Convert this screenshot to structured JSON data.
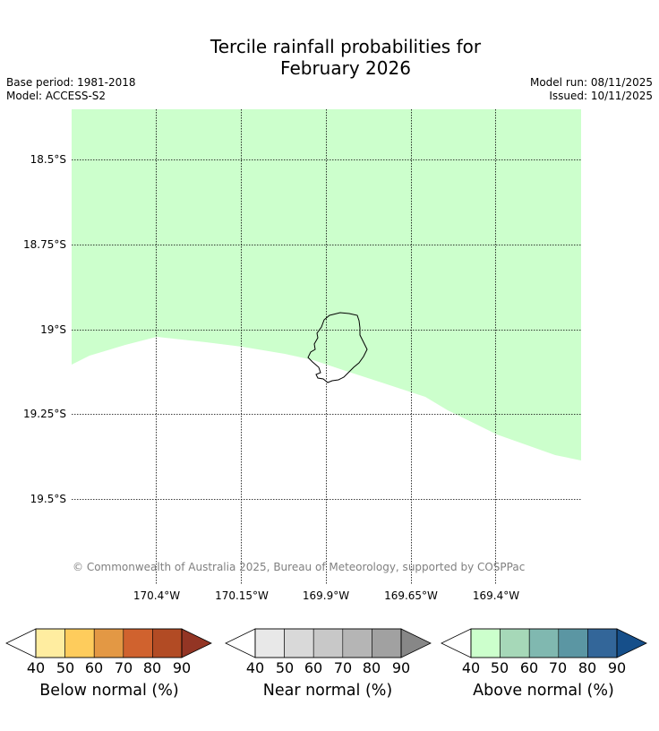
{
  "title": {
    "line1": "Tercile rainfall probabilities for",
    "line2": "February 2026"
  },
  "meta": {
    "base_period": "Base period: 1981-2018",
    "model": "Model: ACCESS-S2",
    "model_run": "Model run: 08/11/2025",
    "issued": "Issued: 10/11/2025"
  },
  "map": {
    "latitude_labels": [
      "18.5°S",
      "18.75°S",
      "19°S",
      "19.25°S",
      "19.5°S"
    ],
    "longitude_labels": [
      "170.4°W",
      "170.15°W",
      "169.9°W",
      "169.65°W",
      "169.4°W"
    ],
    "category_shown": "Above normal",
    "category_level": "40",
    "colors": {
      "above_normal_40": "#ccffcc",
      "coastline": "#000000",
      "gridline": "#000000"
    },
    "copyright": "© Commonwealth of Australia 2025, Bureau of Meteorology, supported by COSPPac"
  },
  "colorbars": [
    {
      "label": "Below normal (%)",
      "ticks": [
        "40",
        "50",
        "60",
        "70",
        "80",
        "90"
      ],
      "colors": [
        "#ffeda0",
        "#fecc5c",
        "#e39844",
        "#d0622e",
        "#b24b24",
        "#933524"
      ]
    },
    {
      "label": "Near normal (%)",
      "ticks": [
        "40",
        "50",
        "60",
        "70",
        "80",
        "90"
      ],
      "colors": [
        "#e8e8e8",
        "#d9d9d9",
        "#c8c8c8",
        "#b5b5b5",
        "#a1a1a1",
        "#878787"
      ]
    },
    {
      "label": "Above normal (%)",
      "ticks": [
        "40",
        "50",
        "60",
        "70",
        "80",
        "90"
      ],
      "colors": [
        "#ccffcc",
        "#a6d8b8",
        "#80b8b0",
        "#5b96a3",
        "#336699",
        "#164f8a"
      ]
    }
  ]
}
